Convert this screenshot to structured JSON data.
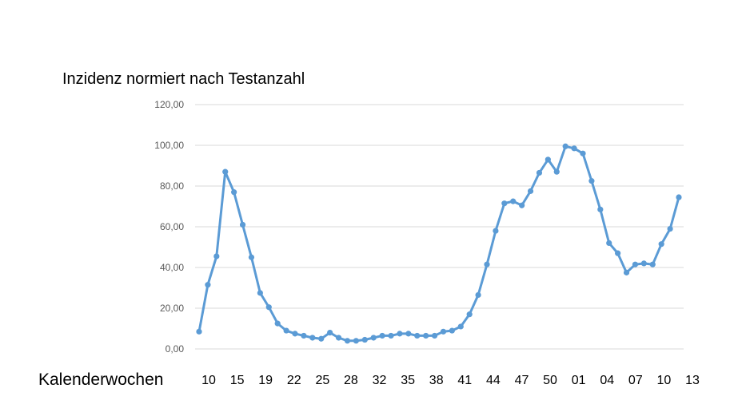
{
  "chart_data": {
    "type": "line",
    "title": "Inzidenz normiert nach Testanzahl",
    "xlabel": "Kalenderwochen",
    "ylabel": "",
    "ylim": [
      0,
      120
    ],
    "yticks": [
      "0,00",
      "20,00",
      "40,00",
      "60,00",
      "80,00",
      "100,00",
      "120,00"
    ],
    "xtick_labels": [
      "10",
      "15",
      "19",
      "22",
      "25",
      "28",
      "32",
      "35",
      "38",
      "41",
      "44",
      "47",
      "50",
      "01",
      "04",
      "07",
      "10",
      "13"
    ],
    "grid": true,
    "legend": "none",
    "color": "#5b9bd5",
    "series": [
      {
        "values": [
          8.5,
          31.5,
          45.5,
          87,
          77,
          61,
          45,
          27.5,
          20.5,
          12.5,
          9,
          7.5,
          6.5,
          5.5,
          5,
          8,
          5.5,
          4,
          4,
          4.5,
          5.5,
          6.5,
          6.5,
          7.5,
          7.5,
          6.5,
          6.5,
          6.5,
          8.5,
          9,
          11,
          17,
          26.5,
          41.5,
          58,
          71.5,
          72.5,
          70.5,
          77.5,
          86.5,
          93,
          87,
          99.5,
          98.5,
          96,
          82.5,
          68.5,
          52,
          47,
          37.5,
          41.5,
          42,
          41.5,
          51.5,
          59,
          74.5
        ]
      }
    ]
  }
}
